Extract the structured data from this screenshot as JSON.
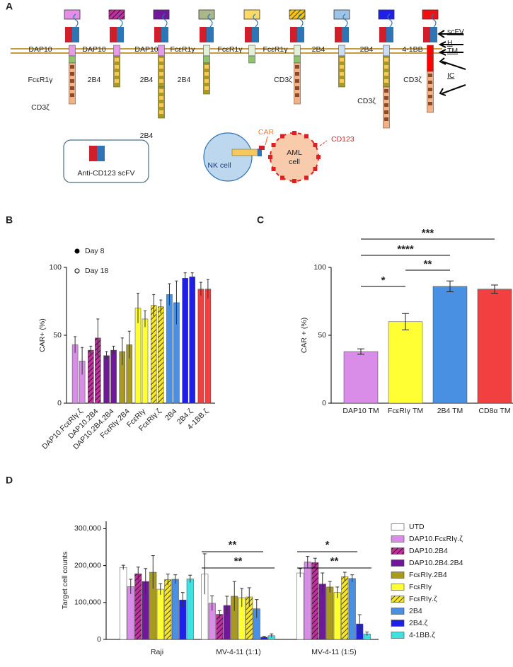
{
  "diagram": {
    "panel": "A",
    "constructs": [
      {
        "color": "#e58ee8",
        "hatch": false,
        "labels": [
          "DAP10",
          "FcεR1γ",
          "CD3ζ"
        ]
      },
      {
        "color": "#c0309f",
        "hatch": true,
        "labels": [
          "DAP10",
          "2B4"
        ]
      },
      {
        "color": "#70179a",
        "hatch": false,
        "labels": [
          "DAP10",
          "2B4",
          "2B4"
        ]
      },
      {
        "color": "#aab78a",
        "hatch": false,
        "labels": [
          "FcεR1γ",
          "2B4"
        ]
      },
      {
        "color": "#ffd966",
        "hatch": false,
        "labels": [
          "FcεR1γ"
        ]
      },
      {
        "color": "#f5c518",
        "hatch": true,
        "labels": [
          "FcεR1γ",
          "CD3ζ"
        ]
      },
      {
        "color": "#9dc3e6",
        "hatch": false,
        "labels": [
          "2B4"
        ]
      },
      {
        "color": "#1f1fe8",
        "hatch": false,
        "labels": [
          "2B4",
          "CD3ζ"
        ]
      },
      {
        "color": "#f01010",
        "hatch": false,
        "labels": [
          "4-1BB",
          "CD3ζ"
        ]
      }
    ],
    "domain_labels": [
      "scFV",
      "H",
      "TM",
      "IC"
    ],
    "inset_label": "Anti-CD123 scFV",
    "car_label": "CAR",
    "nk_label": "NK cell",
    "aml_label": [
      "AML",
      "cell"
    ],
    "antigen_label": "CD123"
  },
  "chart_data": [
    {
      "type": "bar",
      "panel": "B",
      "y_label": "CAR+ (%)",
      "categories": [
        "DAP10.FcεRIγ.ζ",
        "DAP10.2B4",
        "DAP10.2B4.2B4",
        "FcεRIγ.2B4",
        "FcεRIγ",
        "FcεRIγ.ζ",
        "2B4",
        "2B4.ζ",
        "4-1BB.ζ"
      ],
      "colors": [
        "#da8de8",
        "#c0309f",
        "#70179a",
        "#a89a1e",
        "#ffff33",
        "#f5e62a",
        "#4a90e2",
        "#1f1fe8",
        "#f24040"
      ],
      "hatch": [
        false,
        true,
        false,
        false,
        false,
        true,
        false,
        false,
        false
      ],
      "series": [
        {
          "name": "Day 8",
          "marker": "filled",
          "values": [
            43,
            39,
            35,
            38,
            70,
            72,
            80,
            92,
            84
          ],
          "errors": [
            6,
            3,
            3,
            10,
            11,
            8,
            8,
            4,
            5
          ]
        },
        {
          "name": "Day 18",
          "marker": "open",
          "values": [
            31,
            48,
            39,
            43,
            62,
            71,
            74,
            93,
            84
          ],
          "errors": [
            10,
            14,
            3,
            10,
            6,
            5,
            16,
            3,
            7
          ]
        }
      ],
      "ylim": [
        0,
        100
      ],
      "yticks": [
        0,
        50,
        100
      ]
    },
    {
      "type": "bar",
      "panel": "C",
      "y_label": "CAR + (%)",
      "categories": [
        "DAP10 TM",
        "FcεRIγ TM",
        "2B4 TM",
        "CD8α TM"
      ],
      "colors": [
        "#da8de8",
        "#ffff33",
        "#4a90e2",
        "#f24040"
      ],
      "values": [
        38,
        60,
        86,
        84
      ],
      "errors": [
        2,
        6,
        4,
        3
      ],
      "significance": [
        "*",
        "**",
        "****",
        "***"
      ],
      "ylim": [
        0,
        100
      ],
      "yticks": [
        0,
        50,
        100
      ]
    },
    {
      "type": "grouped-bar",
      "panel": "D",
      "y_label": "Target cell counts",
      "categories": [
        "Raji",
        "MV-4-11 (1:1)",
        "MV-4-11 (1:5)"
      ],
      "series": [
        {
          "name": "UTD",
          "color": "#ffffff",
          "hatch": false,
          "values": [
            195000,
            177000,
            180000
          ],
          "errors": [
            6000,
            55000,
            12000
          ]
        },
        {
          "name": "DAP10.FcεRIγ.ζ",
          "color": "#da8de8",
          "hatch": false,
          "values": [
            143000,
            98000,
            210000
          ],
          "errors": [
            20000,
            20000,
            15000
          ]
        },
        {
          "name": "DAP10.2B4",
          "color": "#c0309f",
          "hatch": true,
          "values": [
            178000,
            68000,
            208000
          ],
          "errors": [
            18000,
            10000,
            12000
          ]
        },
        {
          "name": "DAP10.2B4.2B4",
          "color": "#70179a",
          "hatch": false,
          "values": [
            157000,
            92000,
            150000
          ],
          "errors": [
            35000,
            25000,
            30000
          ]
        },
        {
          "name": "FcεRIγ.2B4",
          "color": "#a89a1e",
          "hatch": false,
          "values": [
            182000,
            117000,
            142000
          ],
          "errors": [
            45000,
            40000,
            15000
          ]
        },
        {
          "name": "FcεRIγ",
          "color": "#ffff33",
          "hatch": false,
          "values": [
            136000,
            113000,
            127000
          ],
          "errors": [
            15000,
            25000,
            15000
          ]
        },
        {
          "name": "FcεRIγ.ζ",
          "color": "#f5e62a",
          "hatch": true,
          "values": [
            162000,
            115000,
            170000
          ],
          "errors": [
            15000,
            25000,
            12000
          ]
        },
        {
          "name": "2B4",
          "color": "#4a90e2",
          "hatch": false,
          "values": [
            163000,
            83000,
            165000
          ],
          "errors": [
            12000,
            25000,
            10000
          ]
        },
        {
          "name": "2B4.ζ",
          "color": "#1f1fe8",
          "hatch": false,
          "values": [
            107000,
            6000,
            42000
          ],
          "errors": [
            20000,
            2000,
            25000
          ]
        },
        {
          "name": "4-1BB.ζ",
          "color": "#40e0e0",
          "hatch": false,
          "values": [
            164000,
            10000,
            15000
          ],
          "errors": [
            10000,
            5000,
            5000
          ]
        }
      ],
      "significance": [
        "**",
        "**",
        "*",
        "**"
      ],
      "ylim": [
        0,
        320000
      ],
      "yticks": [
        0,
        {
          "value": 100000,
          "label": "100,000"
        },
        {
          "value": 200000,
          "label": "200,000"
        },
        {
          "value": 300000,
          "label": "300,000"
        }
      ]
    }
  ]
}
